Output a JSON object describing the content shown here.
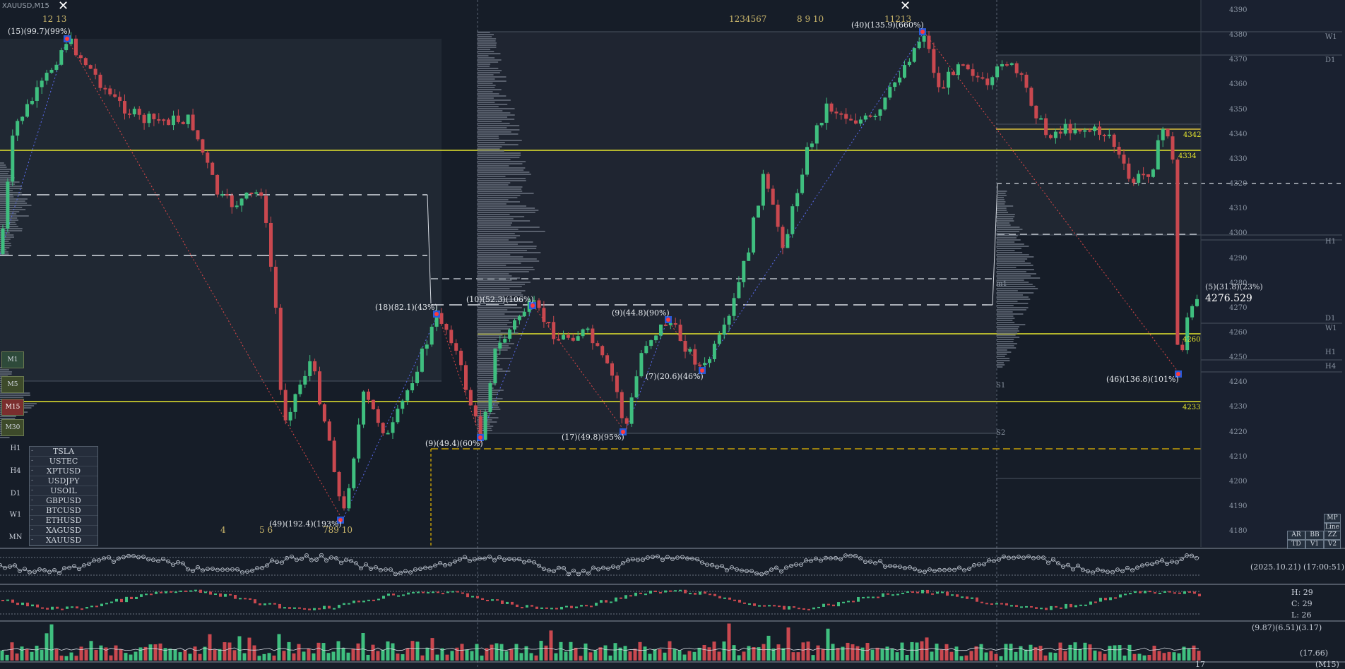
{
  "window": {
    "title": "XAUUSD,M15"
  },
  "price_axis": {
    "ticks": [
      "4390",
      "4380",
      "4370",
      "4360",
      "4350",
      "4340",
      "4330",
      "4320",
      "4310",
      "4300",
      "4290",
      "4280",
      "4270",
      "4260",
      "4250",
      "4240",
      "4230",
      "4220",
      "4210",
      "4200",
      "4190",
      "4180"
    ]
  },
  "current_price": "4276.529",
  "current_info": "(5)(31.8)(23%)",
  "levels": {
    "l4342": "4342",
    "l4334": "4334",
    "l4260": "4260",
    "l4233": "4233",
    "w1a": "W1",
    "d1a": "D1",
    "h1a": "H1",
    "d1b": "D1",
    "w1b": "W1",
    "h1b": "H1",
    "h4": "H4",
    "s1a": "S1",
    "s2": "S2",
    "m1": "m1"
  },
  "swing_labels": [
    "(15)(99.7)(99%)",
    "(49)(192.4)(193%)",
    "(18)(82.1)(43%)",
    "(9)(49.4)(60%)",
    "(10)(52.3)(106%)",
    "(17)(49.8)(95%)",
    "(9)(44.8)(90%)",
    "(7)(20.6)(46%)",
    "(40)(135.9)(660%)",
    "(46)(136.8)(101%)"
  ],
  "top_counts": {
    "a": "12  13",
    "b": "1234567",
    "c": "8  9 10",
    "d": "11213"
  },
  "bottom_counts": {
    "a": "4",
    "b": "5  6",
    "c": "789  10"
  },
  "symbols": [
    "TSLA",
    "USTEC",
    "XPTUSD",
    "USDJPY",
    "USOIL",
    "GBPUSD",
    "BTCUSD",
    "ETHUSD",
    "XAGUSD",
    "XAUUSD"
  ],
  "timeframes_left": [
    "H1",
    "H4",
    "D1",
    "W1",
    "MN"
  ],
  "tf_boxes": [
    "M1",
    "M5",
    "M15",
    "M30"
  ],
  "right_buttons": [
    "MP",
    "Line",
    "AR",
    "BB",
    "ZZ",
    "TD",
    "V1",
    "V2"
  ],
  "indicators": {
    "datetime": "(2025.10.21) (17:00:51)",
    "h": "H:  29",
    "c": "C:  29",
    "l": "L:   26",
    "vol_info": "(9.87)(6.51)(3.17)",
    "vol_last": "(17.66)",
    "tf_footer": "(M15)",
    "bar_count": "17"
  },
  "colors": {
    "background": "#161d28",
    "bull": "#3fbf7f",
    "bear": "#c9484f",
    "yellow_level": "#e6e62e",
    "profile": "#6b7380"
  }
}
